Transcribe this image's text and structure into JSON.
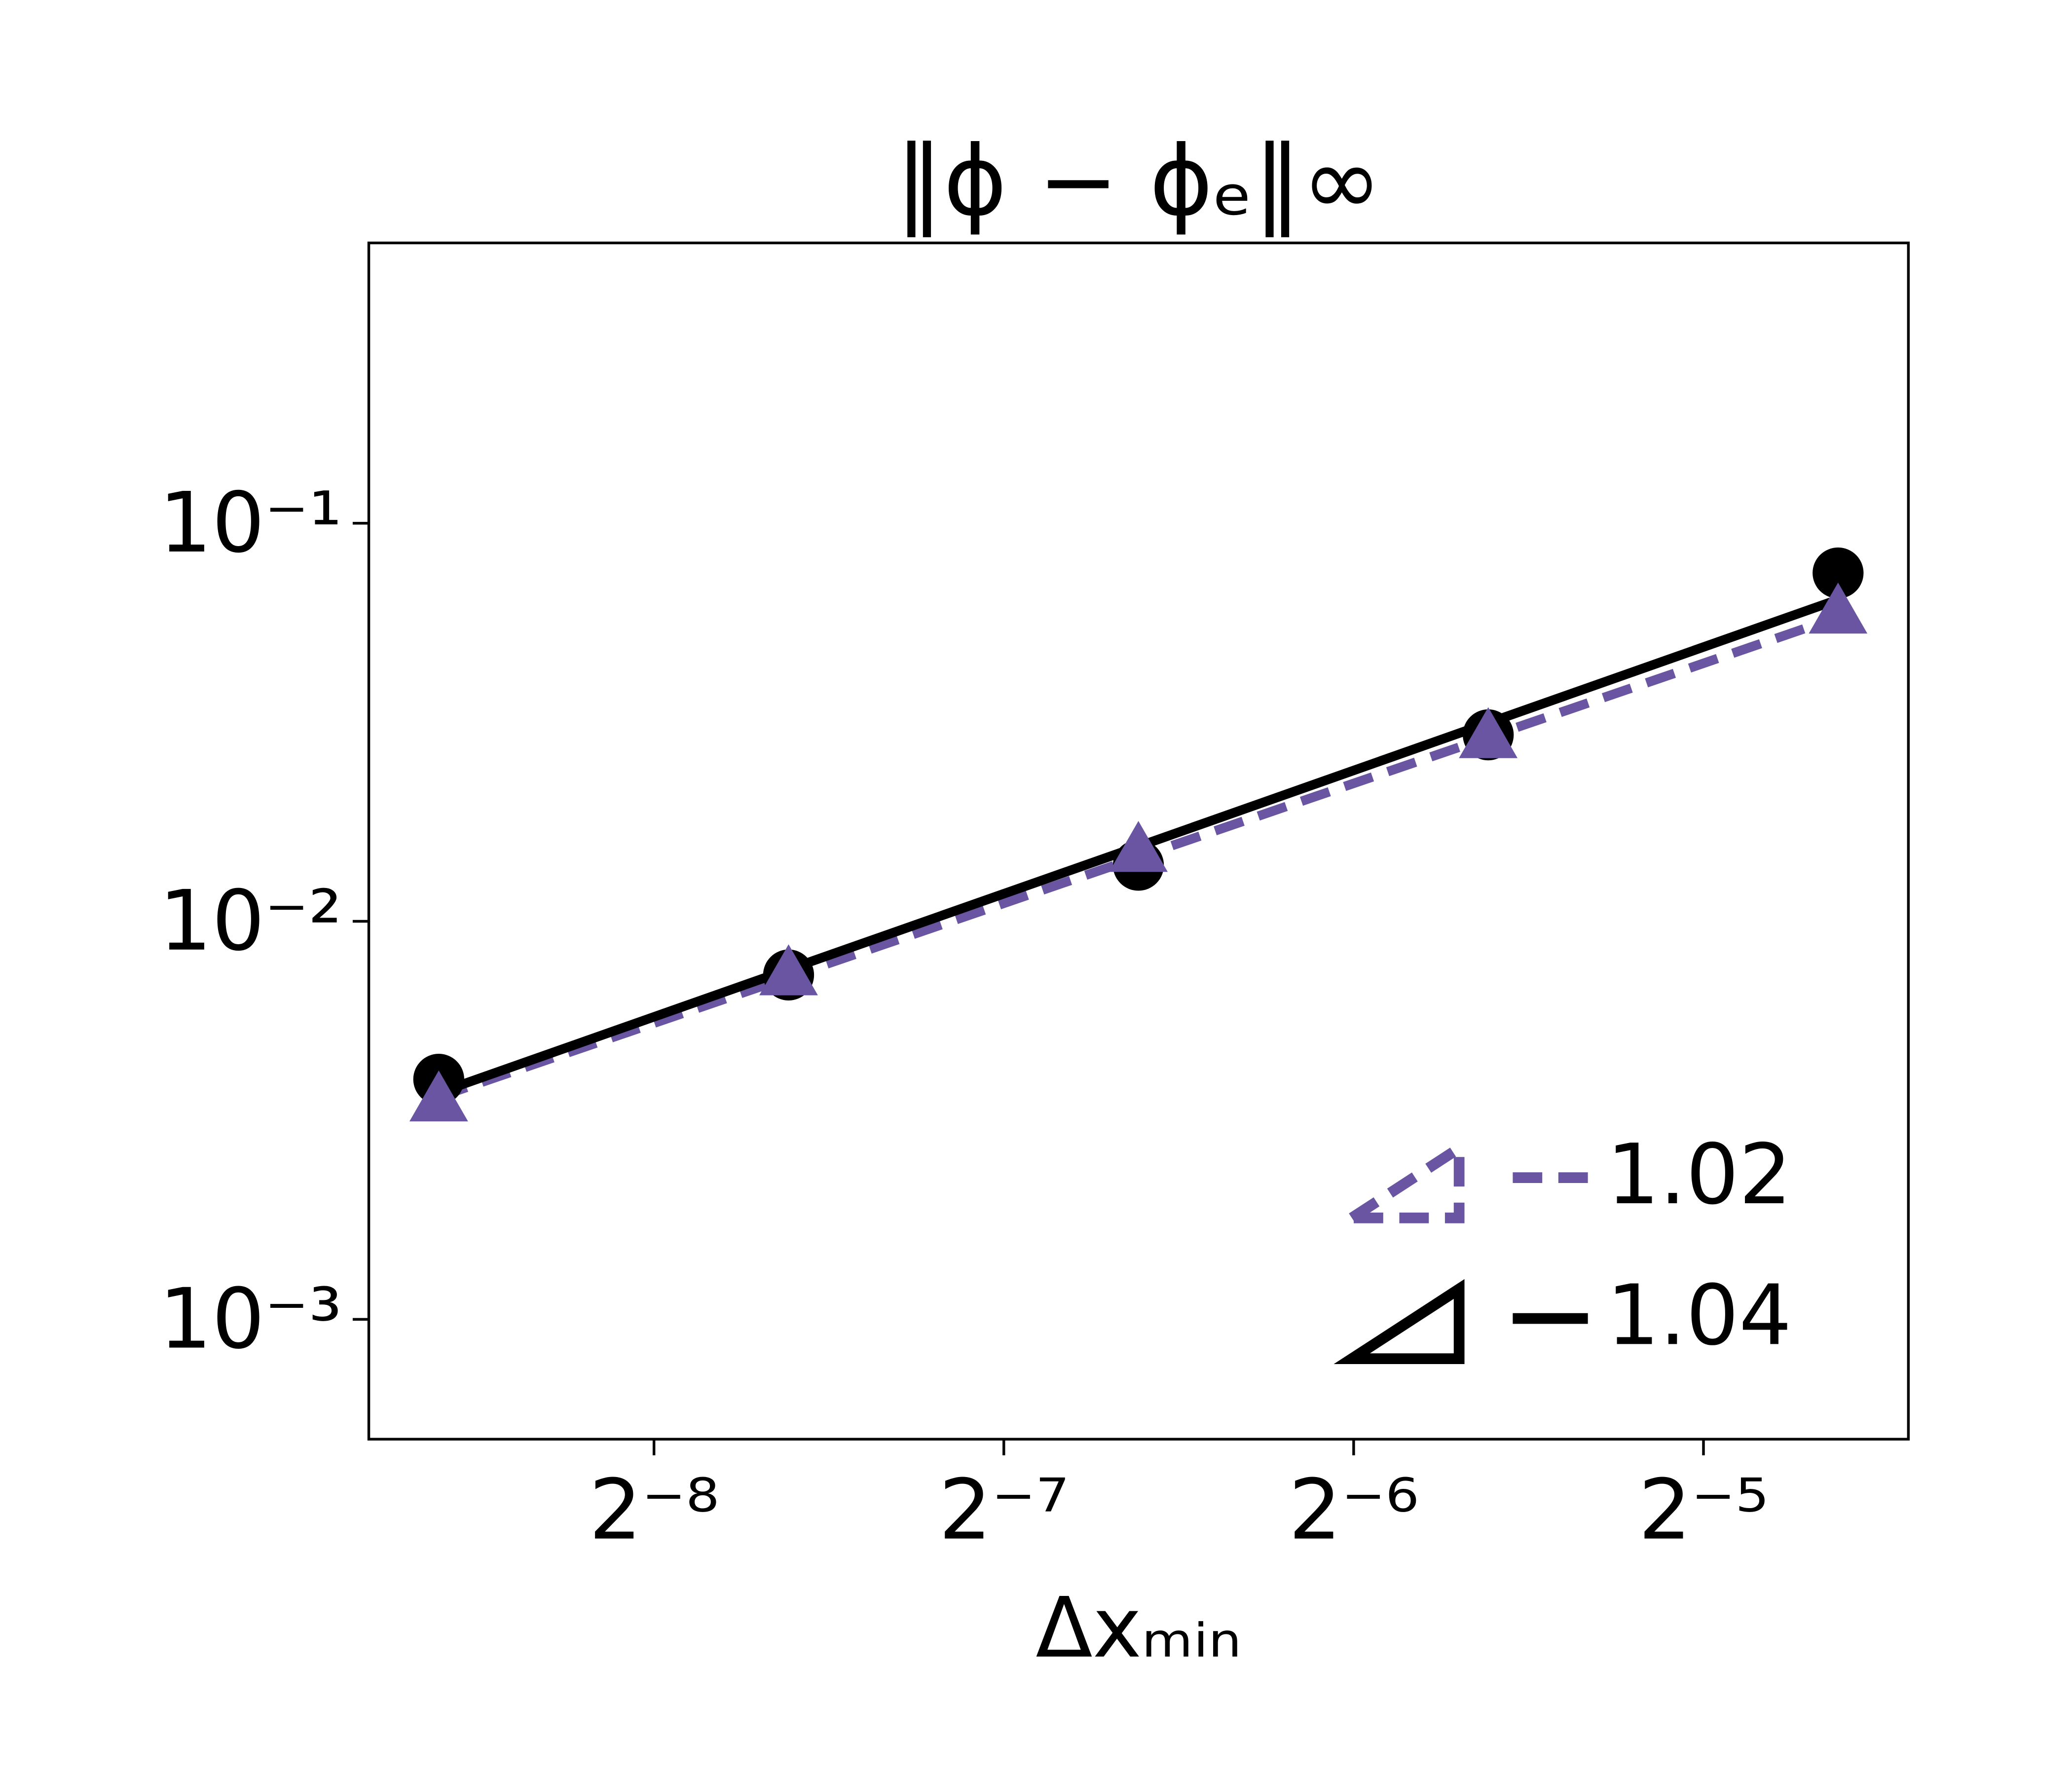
{
  "chart_data": {
    "type": "scatter",
    "title": "‖ϕ − ϕₑ‖∞",
    "xlabel": "Δxₘᵢₙ",
    "x": [
      0.00255,
      0.0051,
      0.0102,
      0.0204,
      0.0408
    ],
    "series": [
      {
        "name": "1.02",
        "color": "#6a55a3",
        "marker": "triangle",
        "linestyle": "dashed",
        "values": [
          0.00351,
          0.00728,
          0.01486,
          0.0287,
          0.059
        ],
        "fit": [
          0.00362,
          0.00724,
          0.01449,
          0.029,
          0.0581
        ]
      },
      {
        "name": "1.04",
        "color": "#000000",
        "marker": "circle",
        "linestyle": "solid",
        "values": [
          0.00401,
          0.00733,
          0.01383,
          0.0294,
          0.075
        ],
        "fit": [
          0.00371,
          0.00757,
          0.01542,
          0.0315,
          0.0643
        ]
      }
    ],
    "xscale": "log",
    "yscale": "log",
    "xlim": [
      0.00222,
      0.0469
    ],
    "ylim": [
      0.0005,
      0.506
    ],
    "xticks": [
      {
        "value": 0.00390625,
        "label": "2⁻⁸"
      },
      {
        "value": 0.0078125,
        "label": "2⁻⁷"
      },
      {
        "value": 0.015625,
        "label": "2⁻⁶"
      },
      {
        "value": 0.03125,
        "label": "2⁻⁵"
      }
    ],
    "yticks": [
      {
        "value": 0.001,
        "label": "10⁻³"
      },
      {
        "value": 0.01,
        "label": "10⁻²"
      },
      {
        "value": 0.1,
        "label": "10⁻¹"
      }
    ],
    "legend": "lower right",
    "grid": false
  }
}
